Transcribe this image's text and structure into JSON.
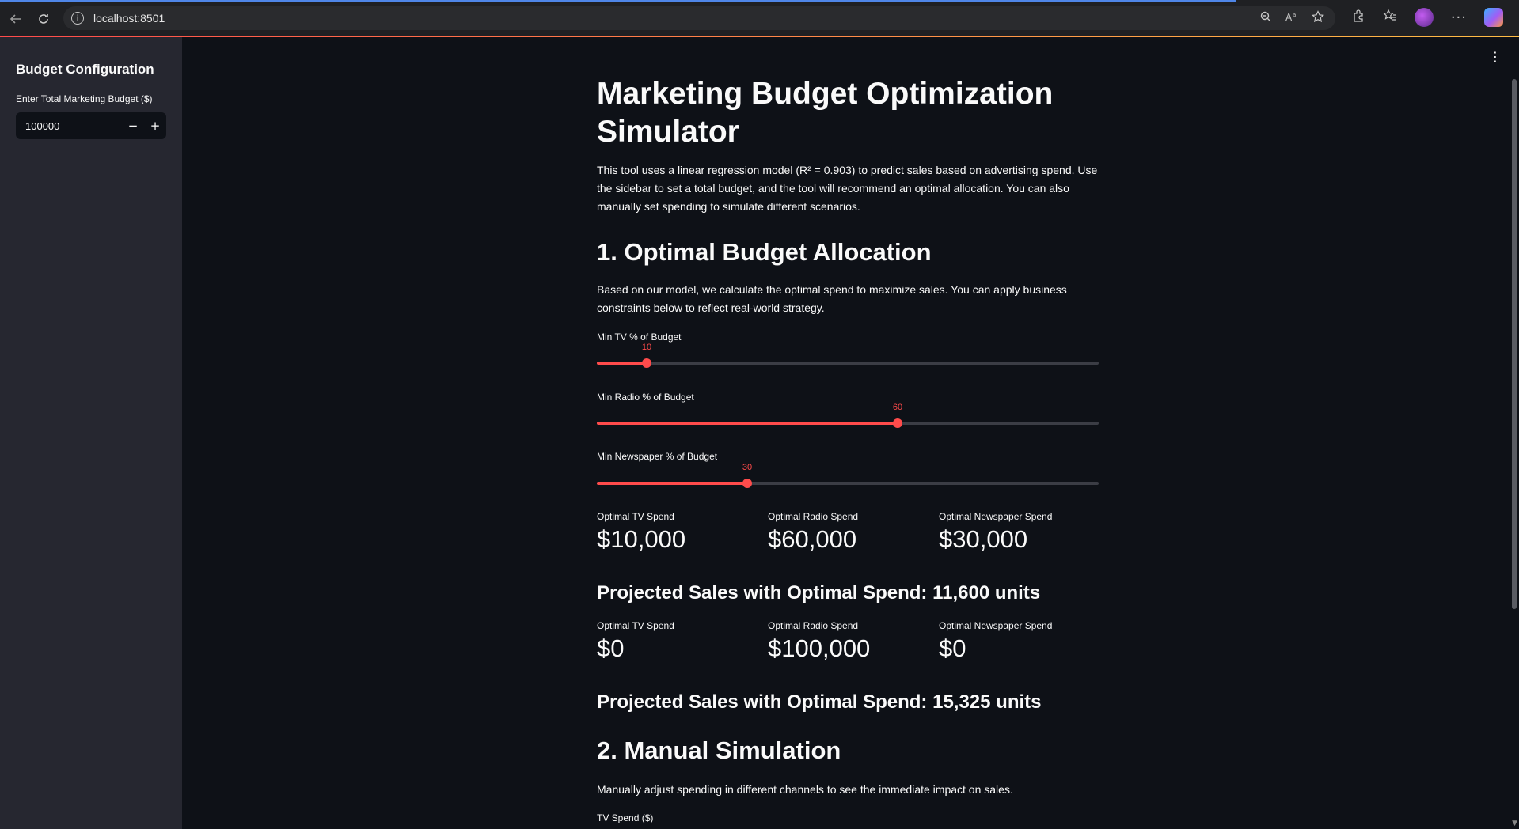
{
  "browser": {
    "url": "localhost:8501"
  },
  "sidebar": {
    "title": "Budget Configuration",
    "budget_label": "Enter Total Marketing Budget ($)",
    "budget_value": "100000",
    "decrement": "−",
    "increment": "+"
  },
  "main": {
    "title": "Marketing Budget Optimization Simulator",
    "intro": "This tool uses a linear regression model (R² = 0.903) to predict sales based on advertising spend. Use the sidebar to set a total budget, and the tool will recommend an optimal allocation. You can also manually set spending to simulate different scenarios.",
    "section1_title": "1. Optimal Budget Allocation",
    "section1_text": "Based on our model, we calculate the optimal spend to maximize sales. You can apply business constraints below to reflect real-world strategy.",
    "sliders": [
      {
        "label": "Min TV % of Budget",
        "value": "10",
        "fraction": 0.1
      },
      {
        "label": "Min Radio % of Budget",
        "value": "60",
        "fraction": 0.6
      },
      {
        "label": "Min Newspaper % of Budget",
        "value": "30",
        "fraction": 0.3
      }
    ],
    "metrics_1": [
      {
        "label": "Optimal TV Spend",
        "value": "$10,000"
      },
      {
        "label": "Optimal Radio Spend",
        "value": "$60,000"
      },
      {
        "label": "Optimal Newspaper Spend",
        "value": "$30,000"
      }
    ],
    "projected_1": "Projected Sales with Optimal Spend: 11,600 units",
    "metrics_2": [
      {
        "label": "Optimal TV Spend",
        "value": "$0"
      },
      {
        "label": "Optimal Radio Spend",
        "value": "$100,000"
      },
      {
        "label": "Optimal Newspaper Spend",
        "value": "$0"
      }
    ],
    "projected_2": "Projected Sales with Optimal Spend: 15,325 units",
    "section2_title": "2. Manual Simulation",
    "section2_text": "Manually adjust spending in different channels to see the immediate impact on sales.",
    "tv_spend_label": "TV Spend ($)"
  },
  "colors": {
    "accent": "#ff4b4b",
    "background": "#0e1117",
    "sidebar": "#262730"
  },
  "icons": [
    "back-icon",
    "refresh-icon",
    "site-info-icon",
    "zoom-icon",
    "read-aloud-icon",
    "favorite-icon",
    "extensions-icon",
    "favorites-icon",
    "profile-avatar",
    "more-icon",
    "copilot-icon",
    "main-menu-icon"
  ]
}
